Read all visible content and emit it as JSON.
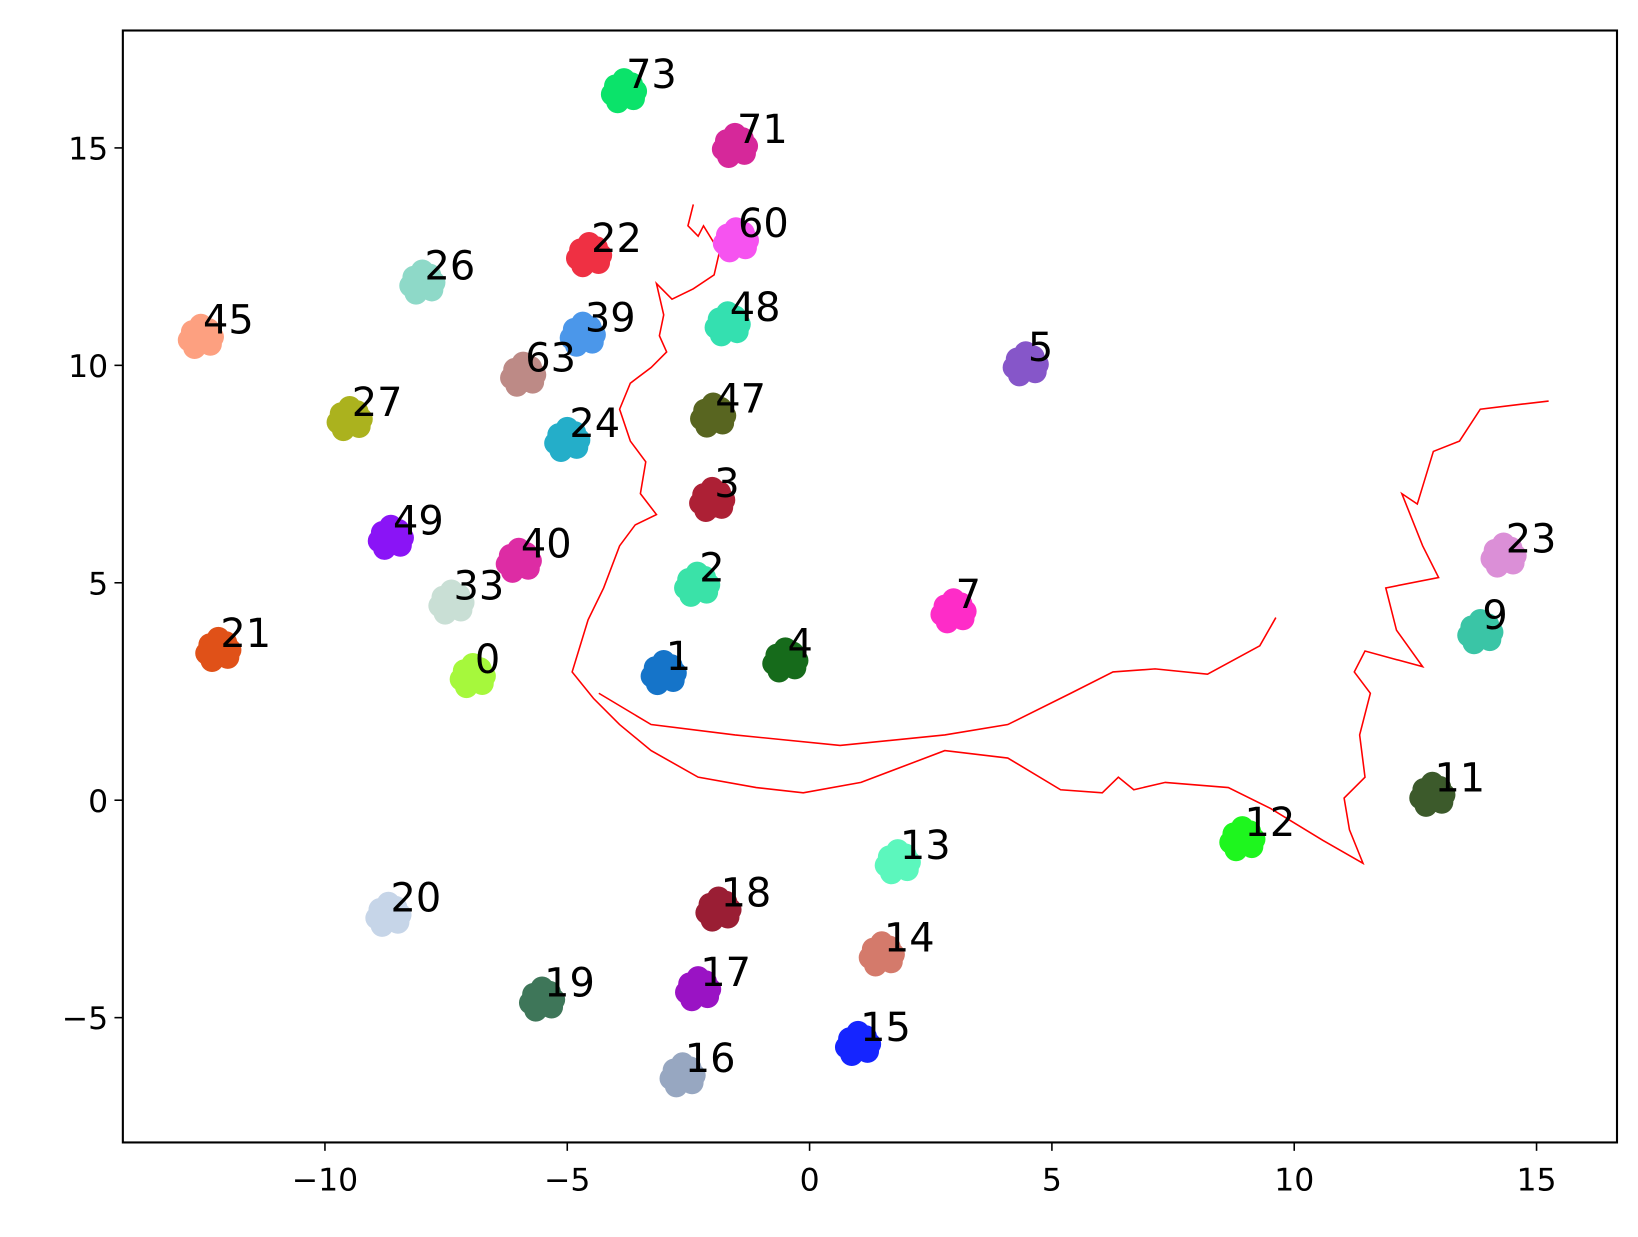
{
  "chart_data": {
    "type": "scatter",
    "xlim": [
      -14.17,
      16.66
    ],
    "ylim": [
      -7.87,
      17.7
    ],
    "xticks": [
      {
        "value": -10,
        "label": "−10"
      },
      {
        "value": -5,
        "label": "−5"
      },
      0,
      5,
      10,
      15
    ],
    "yticks": [
      {
        "value": -5,
        "label": "−5"
      },
      0,
      5,
      10,
      15
    ],
    "points": [
      {
        "label": "73",
        "x": -3.83,
        "y": 16.28,
        "color": "#0be36a"
      },
      {
        "label": "71",
        "x": -1.54,
        "y": 15.02,
        "color": "#d6289a"
      },
      {
        "label": "60",
        "x": -1.52,
        "y": 12.85,
        "color": "#f653f0"
      },
      {
        "label": "22",
        "x": -4.55,
        "y": 12.51,
        "color": "#ef3043"
      },
      {
        "label": "26",
        "x": -7.99,
        "y": 11.88,
        "color": "#8ed9c8"
      },
      {
        "label": "45",
        "x": -12.56,
        "y": 10.63,
        "color": "#fda080"
      },
      {
        "label": "39",
        "x": -4.68,
        "y": 10.68,
        "color": "#4b97ea"
      },
      {
        "label": "48",
        "x": -1.69,
        "y": 10.92,
        "color": "#34e0b0"
      },
      {
        "label": "63",
        "x": -5.91,
        "y": 9.76,
        "color": "#bd8a86"
      },
      {
        "label": "5",
        "x": 4.46,
        "y": 10.0,
        "color": "#8656c9"
      },
      {
        "label": "27",
        "x": -9.49,
        "y": 8.74,
        "color": "#abb21e"
      },
      {
        "label": "47",
        "x": -1.99,
        "y": 8.82,
        "color": "#586520"
      },
      {
        "label": "24",
        "x": -5.0,
        "y": 8.26,
        "color": "#24aec9"
      },
      {
        "label": "3",
        "x": -2.01,
        "y": 6.88,
        "color": "#ad2035"
      },
      {
        "label": "49",
        "x": -8.64,
        "y": 6.01,
        "color": "#8a14f6"
      },
      {
        "label": "40",
        "x": -6.0,
        "y": 5.48,
        "color": "#dd2ca4"
      },
      {
        "label": "2",
        "x": -2.32,
        "y": 4.93,
        "color": "#3ae2a8"
      },
      {
        "label": "33",
        "x": -7.39,
        "y": 4.52,
        "color": "#c9dfd5"
      },
      {
        "label": "7",
        "x": 2.97,
        "y": 4.32,
        "color": "#fe2cc8"
      },
      {
        "label": "21",
        "x": -12.2,
        "y": 3.43,
        "color": "#e05118"
      },
      {
        "label": "0",
        "x": -6.95,
        "y": 2.83,
        "color": "#a6f83c"
      },
      {
        "label": "1",
        "x": -3.01,
        "y": 2.9,
        "color": "#1574c9"
      },
      {
        "label": "4",
        "x": -0.5,
        "y": 3.19,
        "color": "#166b1b"
      },
      {
        "label": "23",
        "x": 14.32,
        "y": 5.6,
        "color": "#db8fd7"
      },
      {
        "label": "9",
        "x": 13.84,
        "y": 3.84,
        "color": "#3ac5a6"
      },
      {
        "label": "11",
        "x": 12.85,
        "y": 0.1,
        "color": "#3c5a2b"
      },
      {
        "label": "12",
        "x": 8.93,
        "y": -0.92,
        "color": "#1ef61e"
      },
      {
        "label": "13",
        "x": 1.82,
        "y": -1.45,
        "color": "#5cf7bd"
      },
      {
        "label": "18",
        "x": -1.88,
        "y": -2.54,
        "color": "#9a1e34"
      },
      {
        "label": "20",
        "x": -8.69,
        "y": -2.66,
        "color": "#c6d5e8"
      },
      {
        "label": "14",
        "x": 1.49,
        "y": -3.57,
        "color": "#d47a6b"
      },
      {
        "label": "19",
        "x": -5.52,
        "y": -4.61,
        "color": "#3e7659"
      },
      {
        "label": "17",
        "x": -2.3,
        "y": -4.37,
        "color": "#9a13c4"
      },
      {
        "label": "15",
        "x": 1.0,
        "y": -5.63,
        "color": "#1525ff"
      },
      {
        "label": "16",
        "x": -2.62,
        "y": -6.35,
        "color": "#97a7c1"
      }
    ],
    "line": {
      "color": "#ff0000",
      "x": [
        -2.4,
        -2.51,
        -2.3,
        -2.19,
        -1.86,
        -1.97,
        -2.4,
        -2.84,
        -3.16,
        -3.01,
        -3.1,
        -2.95,
        -3.27,
        -3.7,
        -3.92,
        -3.7,
        -3.38,
        -3.49,
        -3.16,
        -3.6,
        -3.92,
        -4.25,
        -4.57,
        -4.9,
        -4.46,
        -3.92,
        -3.27,
        -2.3,
        -1.1,
        -0.13,
        1.06,
        2.79,
        4.09,
        5.18,
        6.04,
        6.37,
        6.69,
        7.34,
        8.64,
        9.51,
        10.59,
        11.42,
        11.14,
        11.03,
        11.46,
        11.35,
        11.57,
        11.24,
        11.46,
        12.65,
        12.11,
        11.89,
        12.98,
        12.65,
        12.22,
        12.54,
        12.87,
        13.41,
        13.84,
        14.71,
        15.25,
        null,
        -4.35,
        -3.27,
        -1.54,
        0.63,
        2.79,
        4.09,
        5.39,
        6.26,
        7.13,
        8.21,
        9.29,
        9.62
      ],
      "y": [
        13.7,
        13.21,
        12.97,
        13.21,
        12.61,
        12.08,
        11.76,
        11.52,
        11.88,
        11.16,
        10.68,
        10.31,
        9.95,
        9.59,
        8.99,
        8.26,
        7.78,
        7.05,
        6.57,
        6.33,
        5.85,
        4.88,
        4.15,
        2.95,
        2.34,
        1.74,
        1.14,
        0.53,
        0.29,
        0.17,
        0.41,
        1.14,
        0.97,
        0.24,
        0.17,
        0.53,
        0.24,
        0.41,
        0.29,
        -0.19,
        -0.92,
        -1.45,
        -0.68,
        0.05,
        0.53,
        1.5,
        2.46,
        2.95,
        3.43,
        3.07,
        3.91,
        4.88,
        5.12,
        5.85,
        7.05,
        6.81,
        8.02,
        8.26,
        8.99,
        9.11,
        9.18,
        null,
        2.46,
        1.74,
        1.5,
        1.26,
        1.5,
        1.74,
        2.46,
        2.95,
        3.02,
        2.9,
        3.55,
        4.2
      ]
    }
  }
}
